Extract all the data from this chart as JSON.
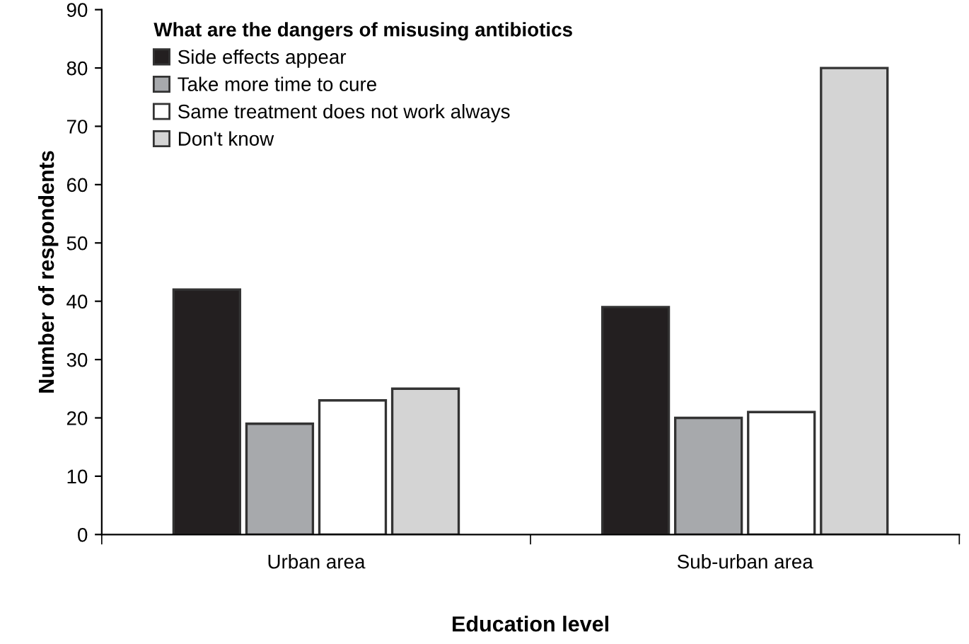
{
  "chart_data": {
    "type": "bar",
    "legend_title": "What are the dangers of misusing antibiotics",
    "xlabel": "Education level",
    "ylabel": "Number of respondents",
    "categories": [
      "Urban area",
      "Sub-urban area"
    ],
    "series": [
      {
        "name": "Side effects appear",
        "color": "#231f20",
        "values": [
          42,
          39
        ]
      },
      {
        "name": "Take more time to cure",
        "color": "#a7a9ac",
        "values": [
          19,
          20
        ]
      },
      {
        "name": "Same treatment does not work always",
        "color": "#ffffff",
        "values": [
          23,
          21
        ]
      },
      {
        "name": "Don't know",
        "color": "#d4d4d4",
        "values": [
          25,
          80
        ]
      }
    ],
    "ylim": [
      0,
      90
    ],
    "yticks": [
      0,
      10,
      20,
      30,
      40,
      50,
      60,
      70,
      80,
      90
    ],
    "grid": false,
    "legend": "top left"
  }
}
